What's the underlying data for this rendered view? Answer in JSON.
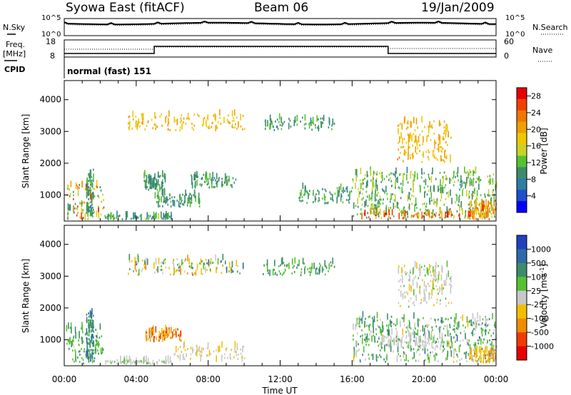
{
  "header": {
    "title": "Syowa East (fitACF)",
    "beam": "Beam 06",
    "date": "19/Jan/2009"
  },
  "noise_panel": {
    "left_label": "N.Sky",
    "right_label": "N.Search",
    "ticks": [
      "10^5",
      "10^0"
    ]
  },
  "freq_panel": {
    "left_label_line1": "Freq.",
    "left_label_line2": "[MHz]",
    "left_ticks": [
      "18",
      "8"
    ],
    "right_label": "Nave",
    "right_ticks": [
      "60",
      "0"
    ]
  },
  "cpid": {
    "label": "CPID",
    "value": "normal (fast) 151"
  },
  "x_axis": {
    "label": "Time UT",
    "ticks": [
      "00:00",
      "04:00",
      "08:00",
      "12:00",
      "16:00",
      "20:00",
      "00:00"
    ]
  },
  "chart_data": [
    {
      "type": "heatmap",
      "name": "power",
      "ylabel": "Slant Range [km]",
      "xlabel": "Time UT",
      "x_range_hours": [
        0,
        24
      ],
      "ylim": [
        180,
        4600
      ],
      "y_ticks": [
        "1000",
        "2000",
        "3000",
        "4000"
      ],
      "colorbar": {
        "label": "Power [dB]",
        "ticks": [
          "4",
          "8",
          "12",
          "16",
          "20",
          "24",
          "28"
        ],
        "range": [
          0,
          30
        ],
        "colors": [
          "#0000ff",
          "#1e4fc8",
          "#2e7ca8",
          "#3c8c6c",
          "#55c232",
          "#c8d228",
          "#f0c800",
          "#f0a000",
          "#f07800",
          "#f04000",
          "#e60000"
        ]
      },
      "echo_regions": [
        {
          "t": [
            0.1,
            2.2
          ],
          "r": [
            200,
            1300
          ],
          "v": [
            8,
            28
          ]
        },
        {
          "t": [
            1.2,
            1.6
          ],
          "r": [
            300,
            1800
          ],
          "v": [
            8,
            12
          ]
        },
        {
          "t": [
            2.2,
            6.0
          ],
          "r": [
            200,
            320
          ],
          "v": [
            6,
            14
          ]
        },
        {
          "t": [
            4.4,
            5.6
          ],
          "r": [
            1100,
            1600
          ],
          "v": [
            8,
            12
          ]
        },
        {
          "t": [
            5.0,
            7.5
          ],
          "r": [
            600,
            1000
          ],
          "v": [
            8,
            12
          ]
        },
        {
          "t": [
            3.5,
            10.0
          ],
          "r": [
            3000,
            3500
          ],
          "v": [
            16,
            22
          ]
        },
        {
          "t": [
            7.0,
            9.5
          ],
          "r": [
            1200,
            1600
          ],
          "v": [
            8,
            12
          ]
        },
        {
          "t": [
            11.0,
            15.0
          ],
          "r": [
            3000,
            3400
          ],
          "v": [
            8,
            12
          ]
        },
        {
          "t": [
            13.0,
            16.0
          ],
          "r": [
            700,
            1200
          ],
          "v": [
            8,
            12
          ]
        },
        {
          "t": [
            16.0,
            24.0
          ],
          "r": [
            250,
            1700
          ],
          "v": [
            8,
            16
          ]
        },
        {
          "t": [
            16.5,
            23.5
          ],
          "r": [
            220,
            420
          ],
          "v": [
            18,
            30
          ]
        },
        {
          "t": [
            18.5,
            21.5
          ],
          "r": [
            2000,
            3300
          ],
          "v": [
            16,
            22
          ]
        },
        {
          "t": [
            22.5,
            24.0
          ],
          "r": [
            200,
            700
          ],
          "v": [
            16,
            26
          ]
        }
      ]
    },
    {
      "type": "heatmap",
      "name": "velocity",
      "ylabel": "Slant Range [km]",
      "xlabel": "Time UT",
      "x_range_hours": [
        0,
        24
      ],
      "ylim": [
        180,
        4600
      ],
      "y_ticks": [
        "1000",
        "2000",
        "3000",
        "4000"
      ],
      "colorbar": {
        "label": "Velocity [m s⁻¹]",
        "label_text": "Velocity [m s",
        "label_sup": "-1",
        "label_end": "]",
        "ticks": [
          "1000",
          "500",
          "100",
          "25",
          "-25",
          "-100",
          "-500",
          "-1000"
        ],
        "range": [
          -1200,
          1200
        ],
        "colors": [
          "#2040c0",
          "#2e6aa8",
          "#3c8c6c",
          "#55c232",
          "#c8c8c8",
          "#f0c000",
          "#f08c00",
          "#f03c00",
          "#e60000"
        ]
      },
      "echo_regions": [
        {
          "t": [
            0.1,
            2.2
          ],
          "r": [
            200,
            1400
          ],
          "v": [
            100,
            600
          ]
        },
        {
          "t": [
            1.2,
            1.6
          ],
          "r": [
            300,
            1800
          ],
          "v": [
            300,
            900
          ]
        },
        {
          "t": [
            2.2,
            6.0
          ],
          "r": [
            200,
            320
          ],
          "v": [
            30,
            150
          ]
        },
        {
          "t": [
            4.5,
            6.5
          ],
          "r": [
            900,
            1300
          ],
          "v": [
            -900,
            -100
          ]
        },
        {
          "t": [
            3.5,
            10.0
          ],
          "r": [
            3000,
            3500
          ],
          "v": [
            -600,
            800
          ]
        },
        {
          "t": [
            6.0,
            10.0
          ],
          "r": [
            300,
            800
          ],
          "v": [
            -200,
            20
          ]
        },
        {
          "t": [
            11.0,
            15.0
          ],
          "r": [
            3000,
            3400
          ],
          "v": [
            200,
            600
          ]
        },
        {
          "t": [
            16.0,
            24.0
          ],
          "r": [
            250,
            1700
          ],
          "v": [
            -150,
            700
          ]
        },
        {
          "t": [
            17.5,
            21.0
          ],
          "r": [
            700,
            1100
          ],
          "v": [
            -30,
            30
          ]
        },
        {
          "t": [
            18.5,
            21.5
          ],
          "r": [
            2000,
            3300
          ],
          "v": [
            -200,
            200
          ]
        },
        {
          "t": [
            22.5,
            24.0
          ],
          "r": [
            250,
            650
          ],
          "v": [
            -600,
            -80
          ]
        }
      ]
    }
  ]
}
